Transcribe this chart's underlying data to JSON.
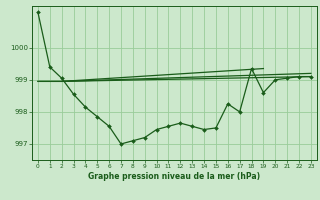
{
  "background_color": "#cce8cc",
  "plot_bg_color": "#cce8cc",
  "grid_color": "#99cc99",
  "line_color": "#1a5c1a",
  "title": "Graphe pression niveau de la mer (hPa)",
  "xlim": [
    -0.5,
    23.5
  ],
  "ylim": [
    996.5,
    1001.3
  ],
  "yticks": [
    997,
    998,
    999,
    1000
  ],
  "xticks": [
    0,
    1,
    2,
    3,
    4,
    5,
    6,
    7,
    8,
    9,
    10,
    11,
    12,
    13,
    14,
    15,
    16,
    17,
    18,
    19,
    20,
    21,
    22,
    23
  ],
  "series1": [
    1001.1,
    999.4,
    999.05,
    998.55,
    998.15,
    997.85,
    997.55,
    997.0,
    997.1,
    997.2,
    997.45,
    997.55,
    997.65,
    997.55,
    997.45,
    997.5,
    998.25,
    998.0,
    999.35,
    998.6,
    999.0,
    999.05,
    999.1,
    999.1
  ],
  "line2_x": [
    0,
    2,
    23
  ],
  "line2_y": [
    998.95,
    998.95,
    999.1
  ],
  "line3_x": [
    0,
    2,
    23
  ],
  "line3_y": [
    998.95,
    998.95,
    999.2
  ],
  "line4_x": [
    2,
    19
  ],
  "line4_y": [
    998.95,
    999.35
  ]
}
